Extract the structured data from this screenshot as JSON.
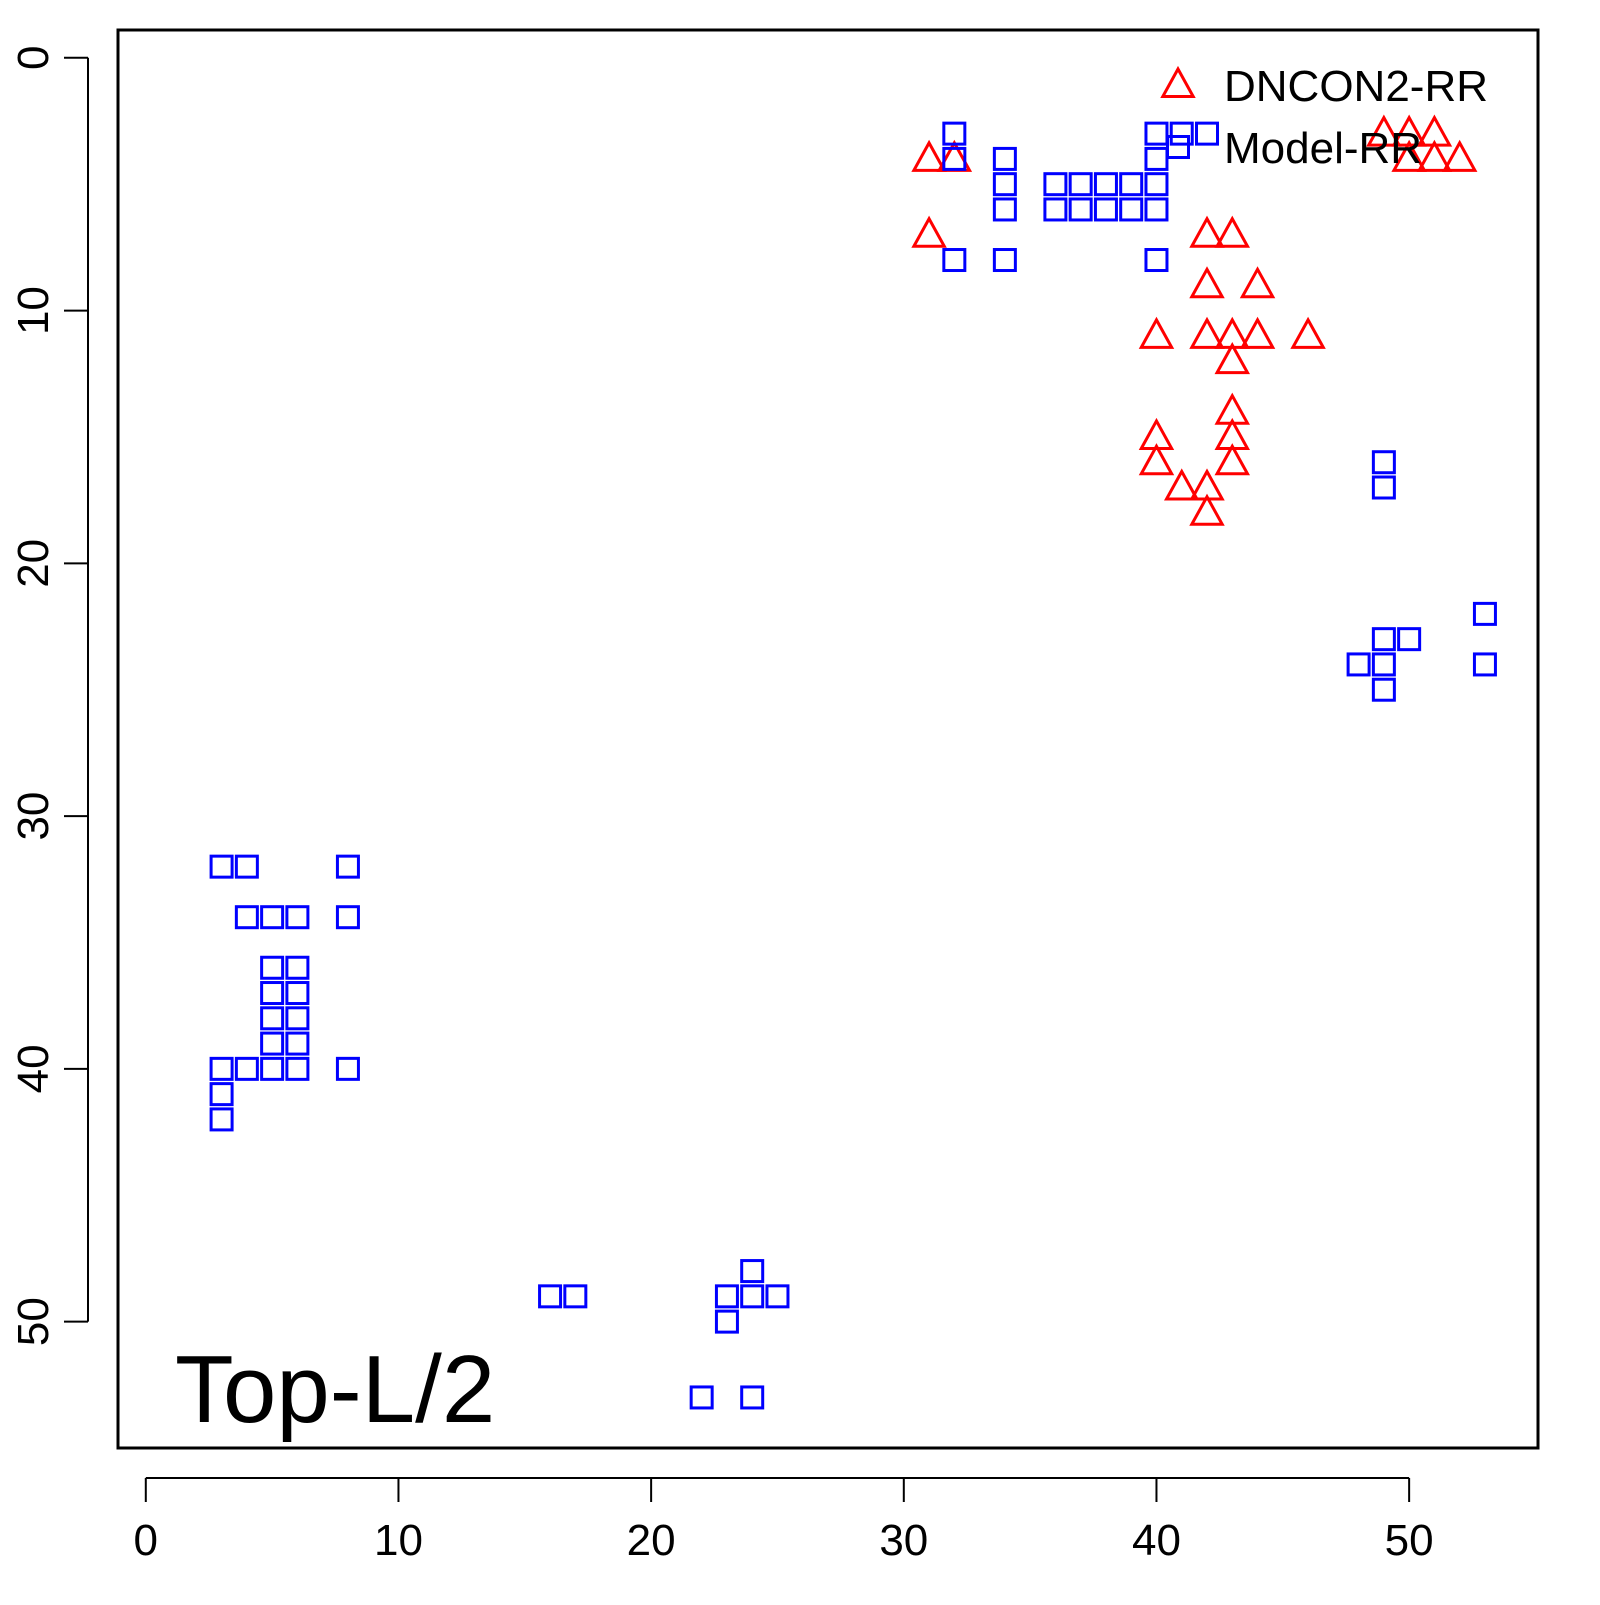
{
  "chart_data": {
    "type": "scatter",
    "annotation": "Top-L/2",
    "xlim": [
      -1.1,
      55.1
    ],
    "ylim": [
      -1.1,
      55
    ],
    "y_reversed": true,
    "xticks": [
      0,
      10,
      20,
      30,
      40,
      50
    ],
    "yticks": [
      0,
      10,
      20,
      30,
      40,
      50
    ],
    "legend": "topright",
    "series": [
      {
        "name": "DNCON2-RR",
        "color": "#ff0000",
        "marker": "triangle",
        "x": [
          31,
          32,
          31,
          42,
          43,
          42,
          44,
          40,
          42,
          43,
          44,
          46,
          43,
          43,
          40,
          43,
          40,
          43,
          41,
          42,
          42,
          49,
          50,
          51,
          50,
          51,
          52
        ],
        "values": [
          4,
          4,
          7,
          7,
          7,
          9,
          9,
          11,
          11,
          11,
          11,
          11,
          12,
          14,
          15,
          15,
          16,
          16,
          17,
          17,
          18,
          3,
          3,
          3,
          4,
          4,
          4
        ]
      },
      {
        "name": "Model-RR",
        "color": "#0000ff",
        "marker": "square",
        "x": [
          32,
          32,
          32,
          34,
          34,
          34,
          34,
          36,
          36,
          37,
          37,
          38,
          38,
          39,
          39,
          40,
          40,
          40,
          40,
          40,
          41,
          42,
          49,
          49,
          53,
          49,
          50,
          48,
          49,
          53,
          49,
          3,
          4,
          8,
          4,
          5,
          6,
          8,
          5,
          6,
          5,
          6,
          5,
          6,
          5,
          6,
          3,
          4,
          5,
          6,
          8,
          3,
          3,
          16,
          17,
          24,
          23,
          24,
          25,
          23,
          22,
          24
        ],
        "values": [
          3,
          4,
          8,
          4,
          5,
          6,
          8,
          5,
          6,
          5,
          6,
          5,
          6,
          5,
          6,
          3,
          4,
          5,
          6,
          8,
          3,
          3,
          16,
          17,
          22,
          23,
          23,
          24,
          24,
          24,
          25,
          32,
          32,
          32,
          34,
          34,
          34,
          34,
          36,
          36,
          37,
          37,
          38,
          38,
          39,
          39,
          40,
          40,
          40,
          40,
          40,
          41,
          42,
          49,
          49,
          48,
          49,
          49,
          49,
          50,
          53,
          53
        ]
      }
    ]
  }
}
